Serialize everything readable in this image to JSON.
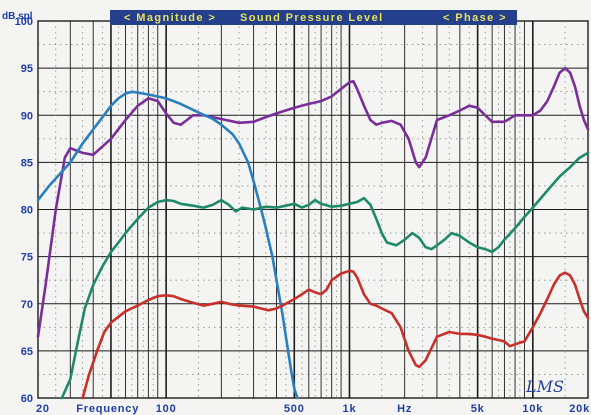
{
  "banner": {
    "magnitude": "< Magnitude >",
    "title": "Sound Pressure Level",
    "phase": "< Phase >"
  },
  "signature": "LMS",
  "colors": {
    "background": "#f4f4f2",
    "grid_dark": "#1c1c1c",
    "grid_dotted": "#8a8a8a",
    "axis_text": "#1f3ea8",
    "banner_bg": "#243f8c",
    "banner_text": "#e8e15a"
  },
  "chart_data": {
    "type": "line",
    "title": "Sound Pressure Level",
    "ylabel": "dB spl",
    "xlabel": "Frequency",
    "x_scale": "log",
    "xlim": [
      20,
      20000
    ],
    "ylim": [
      60,
      100
    ],
    "grid": true,
    "y_ticks": [
      "100",
      "95",
      "90",
      "85",
      "80",
      "75",
      "70",
      "65",
      "60"
    ],
    "x_tick_labels": [
      {
        "text": "20",
        "x": 20
      },
      {
        "text": "Frequency",
        "x": 48
      },
      {
        "text": "100",
        "x": 100
      },
      {
        "text": "500",
        "x": 500
      },
      {
        "text": "1k",
        "x": 1000
      },
      {
        "text": "Hz",
        "x": 2000
      },
      {
        "text": "5k",
        "x": 5000
      },
      {
        "text": "10k",
        "x": 10000
      },
      {
        "text": "20k",
        "x": 20000
      }
    ],
    "series": [
      {
        "color": "#7a2e9a",
        "points": [
          [
            20,
            66.5
          ],
          [
            22,
            72
          ],
          [
            25,
            80
          ],
          [
            28,
            85.5
          ],
          [
            30,
            86.5
          ],
          [
            35,
            86
          ],
          [
            40,
            85.8
          ],
          [
            50,
            87.5
          ],
          [
            60,
            89.5
          ],
          [
            70,
            91
          ],
          [
            80,
            91.8
          ],
          [
            90,
            91.5
          ],
          [
            100,
            90.2
          ],
          [
            110,
            89.2
          ],
          [
            120,
            89
          ],
          [
            130,
            89.5
          ],
          [
            140,
            90
          ],
          [
            160,
            90
          ],
          [
            200,
            89.6
          ],
          [
            250,
            89.2
          ],
          [
            300,
            89.3
          ],
          [
            350,
            89.8
          ],
          [
            400,
            90.2
          ],
          [
            500,
            90.8
          ],
          [
            600,
            91.2
          ],
          [
            700,
            91.5
          ],
          [
            800,
            92
          ],
          [
            900,
            92.8
          ],
          [
            1000,
            93.5
          ],
          [
            1050,
            93.6
          ],
          [
            1100,
            92.8
          ],
          [
            1200,
            91
          ],
          [
            1300,
            89.5
          ],
          [
            1400,
            89
          ],
          [
            1500,
            89.2
          ],
          [
            1700,
            89.4
          ],
          [
            1900,
            89
          ],
          [
            2100,
            87.5
          ],
          [
            2300,
            85
          ],
          [
            2400,
            84.5
          ],
          [
            2600,
            85.5
          ],
          [
            3000,
            89.5
          ],
          [
            3500,
            90
          ],
          [
            4000,
            90.5
          ],
          [
            4500,
            91
          ],
          [
            5000,
            90.8
          ],
          [
            5500,
            90
          ],
          [
            6000,
            89.3
          ],
          [
            7000,
            89.3
          ],
          [
            8000,
            90
          ],
          [
            9000,
            90
          ],
          [
            10000,
            90
          ],
          [
            11000,
            90.5
          ],
          [
            12000,
            91.5
          ],
          [
            13000,
            93
          ],
          [
            14000,
            94.5
          ],
          [
            15000,
            95
          ],
          [
            16000,
            94.5
          ],
          [
            17000,
            93
          ],
          [
            18000,
            91
          ],
          [
            19000,
            89.5
          ],
          [
            20000,
            88.5
          ]
        ]
      },
      {
        "color": "#2a7fc0",
        "points": [
          [
            20,
            81
          ],
          [
            23,
            82.5
          ],
          [
            27,
            84
          ],
          [
            30,
            85
          ],
          [
            35,
            87
          ],
          [
            40,
            88.5
          ],
          [
            45,
            89.8
          ],
          [
            50,
            91
          ],
          [
            55,
            91.8
          ],
          [
            60,
            92.3
          ],
          [
            65,
            92.5
          ],
          [
            70,
            92.4
          ],
          [
            80,
            92.2
          ],
          [
            100,
            91.8
          ],
          [
            120,
            91.2
          ],
          [
            150,
            90.3
          ],
          [
            180,
            89.6
          ],
          [
            200,
            89
          ],
          [
            230,
            88
          ],
          [
            250,
            87
          ],
          [
            280,
            85
          ],
          [
            300,
            83
          ],
          [
            330,
            80
          ],
          [
            350,
            78
          ],
          [
            380,
            75
          ],
          [
            400,
            72.5
          ],
          [
            430,
            69
          ],
          [
            450,
            66.5
          ],
          [
            480,
            63
          ],
          [
            500,
            61
          ],
          [
            520,
            60
          ]
        ]
      },
      {
        "color": "#1f8a6a",
        "points": [
          [
            27,
            60
          ],
          [
            30,
            62
          ],
          [
            33,
            66
          ],
          [
            36,
            69.5
          ],
          [
            40,
            72
          ],
          [
            45,
            74
          ],
          [
            50,
            75.5
          ],
          [
            55,
            76.5
          ],
          [
            60,
            77.5
          ],
          [
            70,
            79
          ],
          [
            80,
            80.2
          ],
          [
            90,
            80.8
          ],
          [
            100,
            81
          ],
          [
            110,
            80.9
          ],
          [
            120,
            80.6
          ],
          [
            140,
            80.4
          ],
          [
            160,
            80.2
          ],
          [
            180,
            80.5
          ],
          [
            200,
            81
          ],
          [
            220,
            80.5
          ],
          [
            240,
            79.8
          ],
          [
            260,
            80.2
          ],
          [
            300,
            80
          ],
          [
            350,
            80.3
          ],
          [
            400,
            80.2
          ],
          [
            450,
            80.4
          ],
          [
            500,
            80.6
          ],
          [
            550,
            80.2
          ],
          [
            600,
            80.5
          ],
          [
            650,
            81
          ],
          [
            700,
            80.6
          ],
          [
            800,
            80.3
          ],
          [
            900,
            80.4
          ],
          [
            1000,
            80.6
          ],
          [
            1100,
            80.8
          ],
          [
            1200,
            81.2
          ],
          [
            1300,
            80.5
          ],
          [
            1400,
            79
          ],
          [
            1500,
            77.5
          ],
          [
            1600,
            76.5
          ],
          [
            1800,
            76.2
          ],
          [
            2000,
            76.8
          ],
          [
            2200,
            77.5
          ],
          [
            2400,
            77
          ],
          [
            2600,
            76
          ],
          [
            2800,
            75.8
          ],
          [
            3000,
            76.2
          ],
          [
            3300,
            76.8
          ],
          [
            3600,
            77.5
          ],
          [
            4000,
            77.2
          ],
          [
            4500,
            76.5
          ],
          [
            5000,
            76
          ],
          [
            5500,
            75.8
          ],
          [
            6000,
            75.5
          ],
          [
            6500,
            76
          ],
          [
            7000,
            76.8
          ],
          [
            8000,
            78
          ],
          [
            9000,
            79.2
          ],
          [
            10000,
            80.2
          ],
          [
            12000,
            82
          ],
          [
            14000,
            83.5
          ],
          [
            16000,
            84.5
          ],
          [
            18000,
            85.5
          ],
          [
            20000,
            86
          ]
        ]
      },
      {
        "color": "#c8302a",
        "points": [
          [
            35,
            60
          ],
          [
            38,
            62.5
          ],
          [
            42,
            65
          ],
          [
            46,
            67
          ],
          [
            50,
            68
          ],
          [
            60,
            69.2
          ],
          [
            70,
            69.8
          ],
          [
            80,
            70.4
          ],
          [
            90,
            70.8
          ],
          [
            100,
            70.9
          ],
          [
            110,
            70.8
          ],
          [
            120,
            70.5
          ],
          [
            140,
            70.1
          ],
          [
            160,
            69.8
          ],
          [
            180,
            70
          ],
          [
            200,
            70.2
          ],
          [
            220,
            70
          ],
          [
            250,
            69.8
          ],
          [
            300,
            69.7
          ],
          [
            330,
            69.5
          ],
          [
            360,
            69.3
          ],
          [
            400,
            69.5
          ],
          [
            450,
            70
          ],
          [
            500,
            70.5
          ],
          [
            550,
            71
          ],
          [
            600,
            71.5
          ],
          [
            650,
            71.2
          ],
          [
            700,
            71
          ],
          [
            750,
            71.5
          ],
          [
            800,
            72.5
          ],
          [
            900,
            73.2
          ],
          [
            1000,
            73.5
          ],
          [
            1050,
            73.4
          ],
          [
            1100,
            72.8
          ],
          [
            1200,
            71
          ],
          [
            1300,
            70
          ],
          [
            1400,
            69.8
          ],
          [
            1500,
            69.5
          ],
          [
            1700,
            69
          ],
          [
            1900,
            67.5
          ],
          [
            2100,
            65
          ],
          [
            2300,
            63.5
          ],
          [
            2400,
            63.3
          ],
          [
            2600,
            64
          ],
          [
            3000,
            66.5
          ],
          [
            3500,
            67
          ],
          [
            4000,
            66.8
          ],
          [
            4500,
            66.8
          ],
          [
            5000,
            66.7
          ],
          [
            5500,
            66.5
          ],
          [
            6000,
            66.3
          ],
          [
            7000,
            66
          ],
          [
            7500,
            65.5
          ],
          [
            8000,
            65.7
          ],
          [
            9000,
            66
          ],
          [
            10000,
            67.5
          ],
          [
            11000,
            69
          ],
          [
            12000,
            70.5
          ],
          [
            13000,
            72
          ],
          [
            14000,
            73
          ],
          [
            15000,
            73.3
          ],
          [
            16000,
            73
          ],
          [
            17000,
            72
          ],
          [
            18000,
            70.5
          ],
          [
            19000,
            69.2
          ],
          [
            20000,
            68.5
          ]
        ]
      }
    ]
  }
}
